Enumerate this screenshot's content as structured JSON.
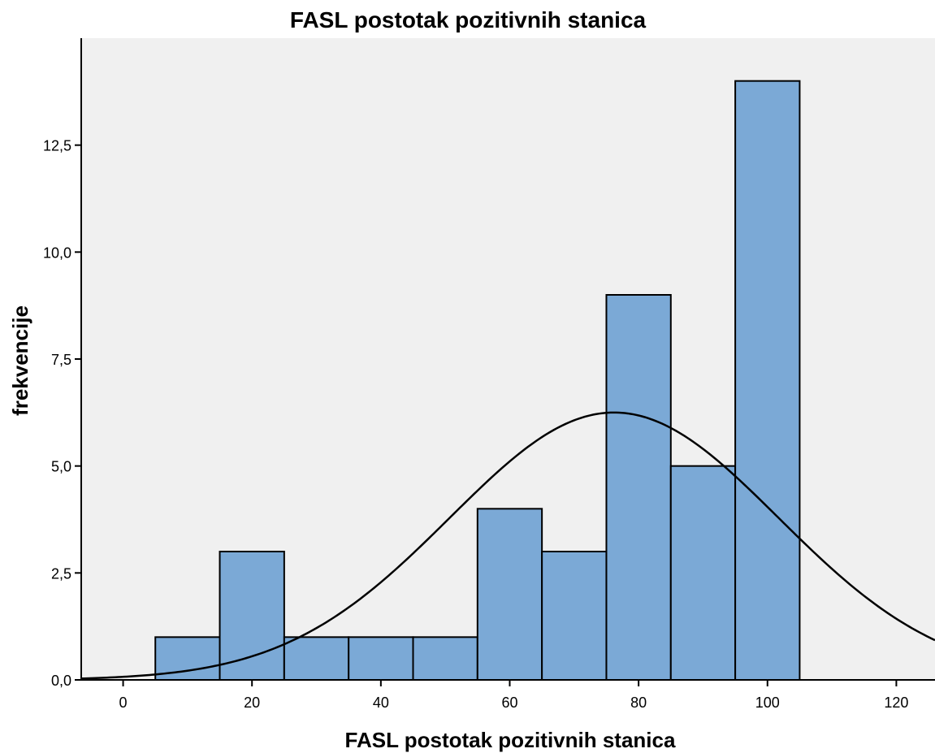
{
  "chart_data": {
    "type": "bar",
    "title": "FASL postotak pozitivnih stanica",
    "xlabel": "FASL postotak pozitivnih stanica",
    "ylabel": "frekvencije",
    "bins": [
      {
        "start": 5,
        "end": 15,
        "count": 1
      },
      {
        "start": 15,
        "end": 25,
        "count": 3
      },
      {
        "start": 25,
        "end": 35,
        "count": 1
      },
      {
        "start": 35,
        "end": 45,
        "count": 1
      },
      {
        "start": 45,
        "end": 55,
        "count": 1
      },
      {
        "start": 55,
        "end": 65,
        "count": 4
      },
      {
        "start": 65,
        "end": 75,
        "count": 3
      },
      {
        "start": 75,
        "end": 85,
        "count": 9
      },
      {
        "start": 85,
        "end": 95,
        "count": 5
      },
      {
        "start": 95,
        "end": 105,
        "count": 14
      }
    ],
    "normal_curve": {
      "mean": 76.2,
      "sd": 25.5,
      "peak": 6.25
    },
    "xlim": [
      -6.5,
      126
    ],
    "ylim": [
      0,
      15
    ],
    "x_ticks": [
      0,
      20,
      40,
      60,
      80,
      100,
      120
    ],
    "x_tick_labels": [
      "0",
      "20",
      "40",
      "60",
      "80",
      "100",
      "120"
    ],
    "y_ticks": [
      0,
      2.5,
      5,
      7.5,
      10,
      12.5
    ],
    "y_tick_labels": [
      "0,0",
      "2,5",
      "5,0",
      "7,5",
      "10,0",
      "12,5"
    ],
    "grid": false,
    "colors": {
      "plot_background": "#f0f0f0",
      "bar_fill": "#7ba9d6",
      "bar_stroke": "#000000",
      "curve": "#000000"
    }
  }
}
